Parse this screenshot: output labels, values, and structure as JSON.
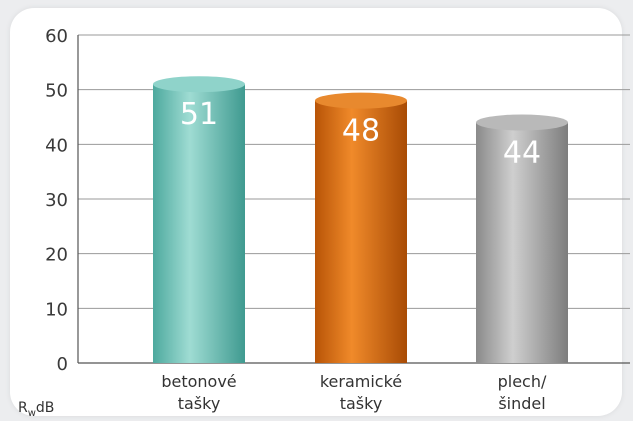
{
  "chart_data": {
    "type": "bar",
    "categories": [
      [
        "betonové",
        "tašky"
      ],
      [
        "keramické",
        "tašky"
      ],
      [
        "plech/",
        "šindel"
      ]
    ],
    "values": [
      51,
      48,
      44
    ],
    "data_labels": [
      "51",
      "48",
      "44"
    ],
    "ylim": [
      0,
      60
    ],
    "yticks": [
      "0",
      "10",
      "20",
      "30",
      "40",
      "50",
      "60"
    ],
    "ylabel_main": "R",
    "ylabel_sub": "w",
    "ylabel_unit": "dB",
    "grid": true,
    "colors": [
      "#7fc8bf",
      "#d9711c",
      "#a9a9a9"
    ]
  }
}
